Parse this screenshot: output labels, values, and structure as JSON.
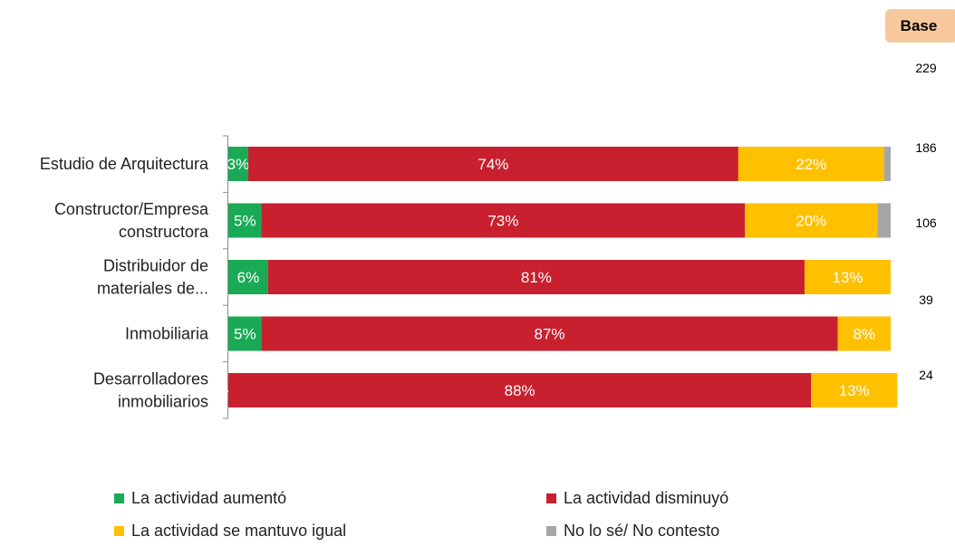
{
  "chart_data": {
    "type": "bar",
    "orientation": "horizontal",
    "stacked": true,
    "categories": [
      [
        "Estudio de Arquitectura"
      ],
      [
        "Constructor/Empresa",
        "constructora"
      ],
      [
        "Distribuidor de",
        "materiales de..."
      ],
      [
        "Inmobiliaria"
      ],
      [
        "Desarrolladores",
        "inmobiliarios"
      ]
    ],
    "series": [
      {
        "name": "La actividad aumentó",
        "color": "#1aaa55",
        "values": [
          3,
          5,
          6,
          5,
          0
        ],
        "labels": [
          "3%",
          "5%",
          "6%",
          "5%",
          "%"
        ]
      },
      {
        "name": "La actividad disminuyó",
        "color": "#c8202f",
        "values": [
          74,
          73,
          81,
          87,
          88
        ],
        "labels": [
          "74%",
          "73%",
          "81%",
          "87%",
          "88%"
        ]
      },
      {
        "name": "La actividad se mantuvo igual",
        "color": "#ffc000",
        "values": [
          22,
          20,
          13,
          8,
          13
        ],
        "labels": [
          "22%",
          "20%",
          "13%",
          "8%",
          "13%"
        ]
      },
      {
        "name": "No lo sé/ No contesto",
        "color": "#a6a6a6",
        "values": [
          1,
          2,
          0,
          0,
          0
        ],
        "labels": [
          "",
          "",
          "",
          "",
          ""
        ]
      }
    ],
    "xlim": [
      0,
      100
    ],
    "grid": false,
    "legend_position": "bottom"
  },
  "base": {
    "label": "Base",
    "values": [
      "229",
      "186",
      "106",
      "39",
      "24"
    ]
  }
}
